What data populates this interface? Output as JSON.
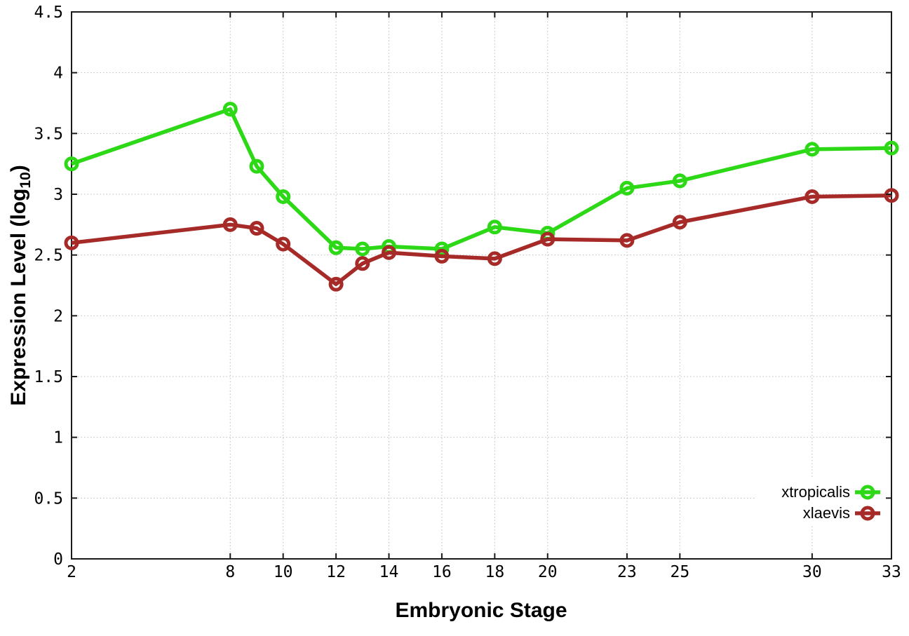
{
  "chart_data": {
    "type": "line",
    "title": "",
    "xlabel": "Embryonic Stage",
    "ylabel_prefix": "Expression Level (log",
    "ylabel_sub": "10",
    "ylabel_suffix": ")",
    "x": [
      2,
      8,
      9,
      10,
      12,
      13,
      14,
      16,
      18,
      20,
      23,
      25,
      30,
      33
    ],
    "series": [
      {
        "name": "xtropicalis",
        "color": "#2dd816",
        "values": [
          3.25,
          3.7,
          3.23,
          2.98,
          2.56,
          2.55,
          2.57,
          2.55,
          2.73,
          2.68,
          3.05,
          3.11,
          3.37,
          3.38
        ]
      },
      {
        "name": "xlaevis",
        "color": "#a62b28",
        "values": [
          2.6,
          2.75,
          2.72,
          2.59,
          2.26,
          2.43,
          2.52,
          2.49,
          2.47,
          2.63,
          2.62,
          2.77,
          2.98,
          2.99
        ]
      }
    ],
    "xlim": [
      2,
      33
    ],
    "ylim": [
      0,
      4.5
    ],
    "xticks": [
      2,
      8,
      10,
      12,
      14,
      16,
      18,
      20,
      23,
      25,
      30,
      33
    ],
    "xtick_labels": [
      "2",
      "8",
      "10",
      "12",
      "14",
      "16",
      "18",
      "20",
      "23",
      "25",
      "30",
      "33"
    ],
    "yticks": [
      0,
      0.5,
      1,
      1.5,
      2,
      2.5,
      3,
      3.5,
      4,
      4.5
    ],
    "ytick_labels": [
      "0",
      "0.5",
      "1",
      "1.5",
      "2",
      "2.5",
      "3",
      "3.5",
      "4",
      "4.5"
    ],
    "grid": true,
    "marker": "open-circle",
    "legend_position": "bottom-right"
  }
}
